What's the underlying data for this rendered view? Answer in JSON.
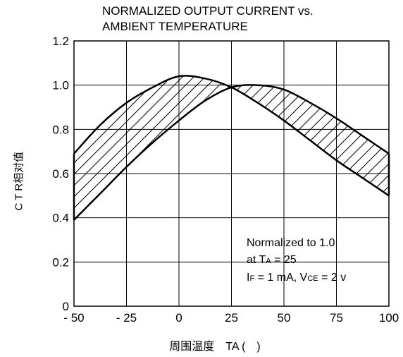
{
  "chart_data": {
    "type": "line",
    "title_lines": [
      "NORMALIZED OUTPUT CURRENT vs.",
      "AMBIENT TEMPERATURE"
    ],
    "ylabel": "C T R相对值",
    "xlabel": "周围温度　TA (　)",
    "x_ticks": [
      "- 50",
      "- 25",
      "0",
      "25",
      "50",
      "75",
      "100"
    ],
    "y_ticks": [
      "0",
      "0.2",
      "0.4",
      "0.6",
      "0.8",
      "1.0",
      "1.2"
    ],
    "xlim": [
      -50,
      100
    ],
    "ylim": [
      0,
      1.2
    ],
    "grid": true,
    "shaded_band": "hatched region between the two curves",
    "x": [
      -50,
      -37.5,
      -25,
      -12.5,
      0,
      12.5,
      25,
      37.5,
      50,
      62.5,
      75,
      87.5,
      100
    ],
    "series": [
      {
        "values": [
          0.69,
          0.82,
          0.92,
          0.99,
          1.04,
          1.03,
          0.99,
          0.92,
          0.84,
          0.75,
          0.66,
          0.58,
          0.5
        ]
      },
      {
        "values": [
          0.39,
          0.51,
          0.63,
          0.74,
          0.84,
          0.93,
          0.99,
          1.0,
          0.98,
          0.92,
          0.85,
          0.77,
          0.69
        ]
      }
    ],
    "annotation": {
      "line1": "Normalized to 1.0",
      "line2_pre": "at T",
      "line2_sub": "A",
      "line2_post": " = 25",
      "line3_a": "I",
      "line3_a_sub": "F",
      "line3_b": " = 1 mA, V",
      "line3_b_sub": "CE",
      "line3_c": " = 2 v"
    }
  }
}
